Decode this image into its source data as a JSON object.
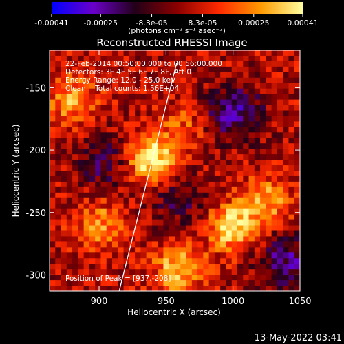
{
  "chart_data": {
    "type": "heatmap",
    "title": "Reconstructed RHESSI Image",
    "xlabel": "Heliocentric X (arcsec)",
    "ylabel": "Heliocentric Y (arcsec)",
    "xlim": [
      863,
      1050
    ],
    "ylim": [
      -313,
      -120
    ],
    "x_ticks": [
      900,
      950,
      1000,
      1050
    ],
    "y_ticks": [
      -300,
      -250,
      -200,
      -150
    ],
    "colorbar": {
      "range": [
        -0.00041,
        0.00041
      ],
      "tick_labels": [
        "-0.00041",
        "-0.00025",
        "-8.3e-05",
        "8.3e-05",
        "0.00025",
        "0.00041"
      ],
      "tick_values": [
        -0.00041,
        -0.00025,
        -8.3e-05,
        8.3e-05,
        0.00025,
        0.00041
      ],
      "unit_label": "(photons cm⁻² s⁻¹ asec⁻²)",
      "colors": [
        "#0000ff",
        "#6a00c8",
        "#220018",
        "#8a0000",
        "#ff2a00",
        "#ff9a00",
        "#ffffa0"
      ]
    },
    "annotations": [
      "22-Feb-2014 00:50:00.000 to 00:56:00.000",
      "Detectors: 3F 4F 5F 6F 7F 8F, Att 0",
      "Energy Range: 12.0 - 25.0 keV",
      "Clean    Total counts: 1.56E+04"
    ],
    "peak_label": "Position of Peak = [937,-208]",
    "limb_line": [
      [
        915,
        -313
      ],
      [
        958,
        -130
      ]
    ],
    "sources": [
      {
        "x": 938,
        "y": -207,
        "amp": 1.0
      },
      {
        "x": 1000,
        "y": -262,
        "amp": 0.85
      },
      {
        "x": 960,
        "y": -295,
        "amp": 0.75
      },
      {
        "x": 880,
        "y": -160,
        "amp": 0.6
      },
      {
        "x": 1025,
        "y": -240,
        "amp": 0.6
      },
      {
        "x": 900,
        "y": -260,
        "amp": 0.55
      },
      {
        "x": 965,
        "y": -180,
        "amp": 0.35
      }
    ],
    "negative_regions": [
      {
        "x": 1000,
        "y": -170,
        "amp": 0.7
      },
      {
        "x": 1040,
        "y": -290,
        "amp": 0.6
      },
      {
        "x": 905,
        "y": -210,
        "amp": 0.45
      },
      {
        "x": 960,
        "y": -240,
        "amp": 0.4
      }
    ]
  },
  "timestamp": "13-May-2022 03:41"
}
